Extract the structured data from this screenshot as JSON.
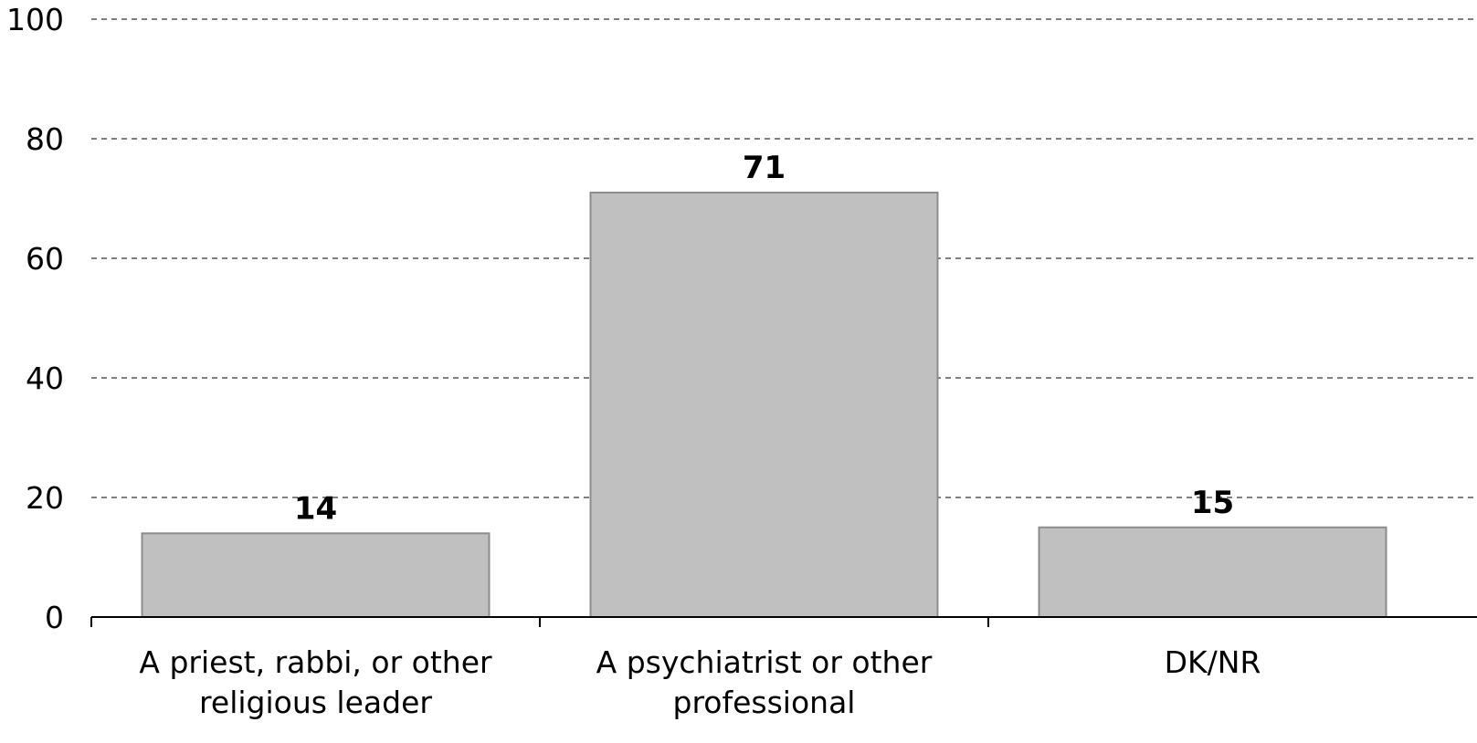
{
  "chart_data": {
    "type": "bar",
    "title": "",
    "xlabel": "",
    "ylabel": "",
    "ylim": [
      0,
      100
    ],
    "yticks": [
      0,
      20,
      40,
      60,
      80,
      100
    ],
    "grid": true,
    "categories": [
      [
        "A priest, rabbi, or other",
        "religious leader"
      ],
      [
        "A psychiatrist or other",
        "professional"
      ],
      [
        "DK/NR"
      ]
    ],
    "values": [
      14,
      71,
      15
    ],
    "data_labels": [
      "14",
      "71",
      "15"
    ],
    "colors": {
      "bar_fill": "#c0c0c0",
      "bar_stroke": "#8c8c8c",
      "axis": "#000000",
      "grid": "#000000"
    }
  }
}
